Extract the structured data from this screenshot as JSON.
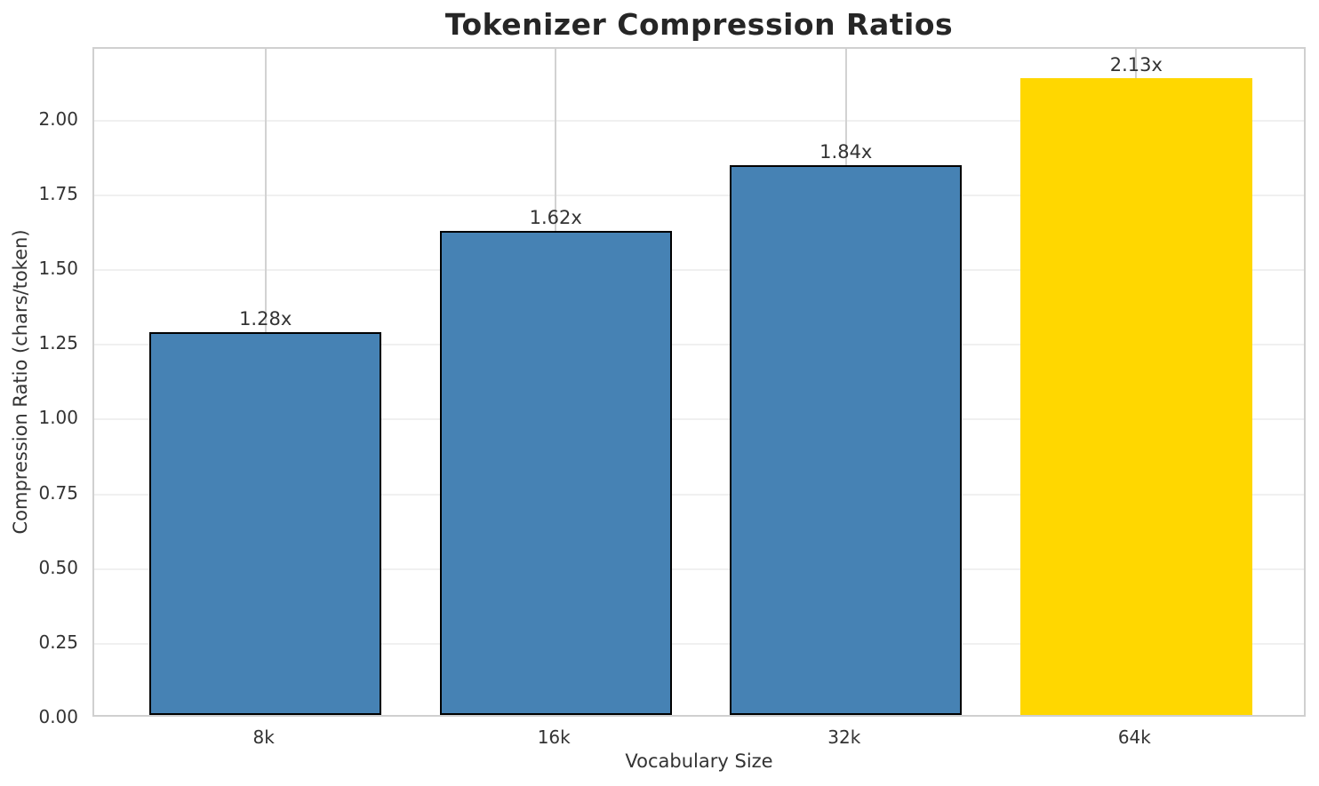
{
  "chart_data": {
    "type": "bar",
    "title": "Tokenizer Compression Ratios",
    "xlabel": "Vocabulary Size",
    "ylabel": "Compression Ratio (chars/token)",
    "categories": [
      "8k",
      "16k",
      "32k",
      "64k"
    ],
    "values": [
      1.28,
      1.62,
      1.84,
      2.13
    ],
    "bar_labels": [
      "1.28x",
      "1.62x",
      "1.84x",
      "2.13x"
    ],
    "bar_colors": [
      "#4682b4",
      "#4682b4",
      "#4682b4",
      "#ffd700"
    ],
    "bar_edge_colors": [
      "#000000",
      "#000000",
      "#000000",
      "#ffd700"
    ],
    "ytick_labels": [
      "0.00",
      "0.25",
      "0.50",
      "0.75",
      "1.00",
      "1.25",
      "1.50",
      "1.75",
      "2.00"
    ],
    "yticks": [
      0.0,
      0.25,
      0.5,
      0.75,
      1.0,
      1.25,
      1.5,
      1.75,
      2.0
    ],
    "ylim": [
      0,
      2.24
    ],
    "grid": true,
    "legend_position": "none",
    "colors": {
      "primary_bar": "#4682b4",
      "highlight_bar": "#ffd700",
      "bar_edge": "#000000",
      "grid_horizontal": "#f0f0f0",
      "grid_vertical": "#d2d2d2",
      "plot_frame": "#d0d0d0",
      "text": "#333333",
      "title_text": "#262626"
    }
  }
}
